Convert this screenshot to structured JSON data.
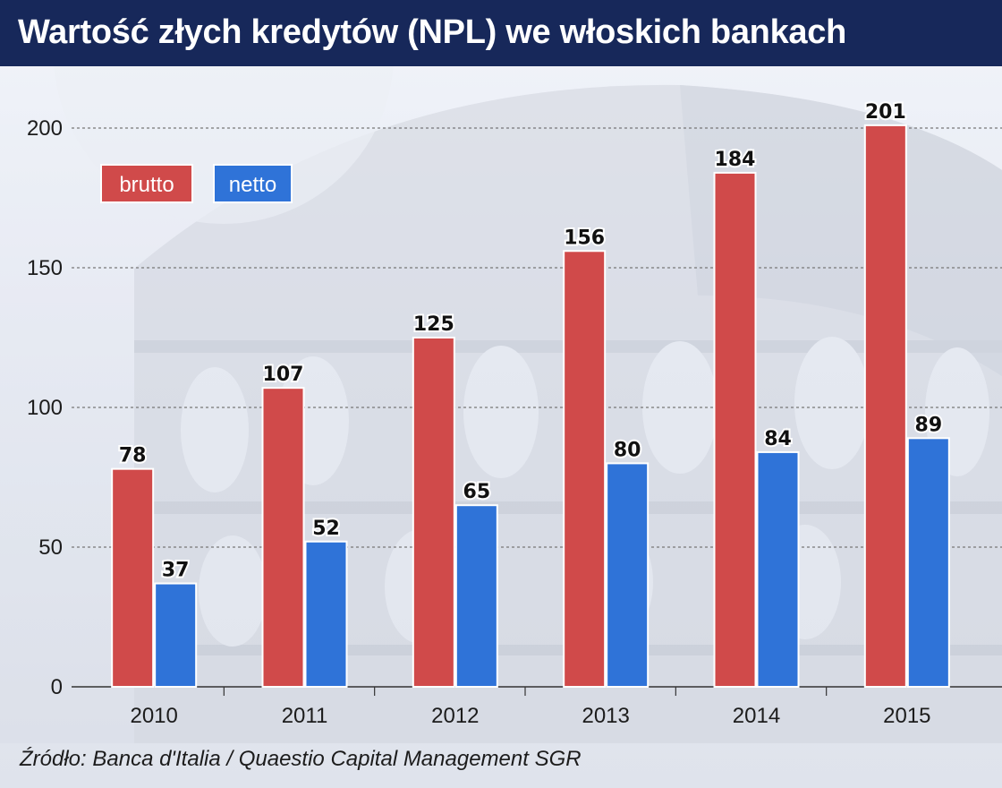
{
  "title": "Wartość złych kredytów (NPL) we włoskich bankach",
  "source": "Źródło: Banca d'Italia / Quaestio Capital Management SGR",
  "colors": {
    "title_bg": "#17285a",
    "brutto": "#d04a4a",
    "netto": "#2f73d8",
    "grid": "#777777"
  },
  "chart_data": {
    "type": "bar",
    "categories": [
      "2010",
      "2011",
      "2012",
      "2013",
      "2014",
      "2015"
    ],
    "series": [
      {
        "name": "brutto",
        "values": [
          78,
          107,
          125,
          156,
          184,
          201
        ]
      },
      {
        "name": "netto",
        "values": [
          37,
          52,
          65,
          80,
          84,
          89
        ]
      }
    ],
    "y_ticks": [
      "0",
      "50",
      "100",
      "150",
      "200"
    ],
    "ylim": [
      0,
      200
    ],
    "grid": true,
    "legend_position": "top-left"
  }
}
